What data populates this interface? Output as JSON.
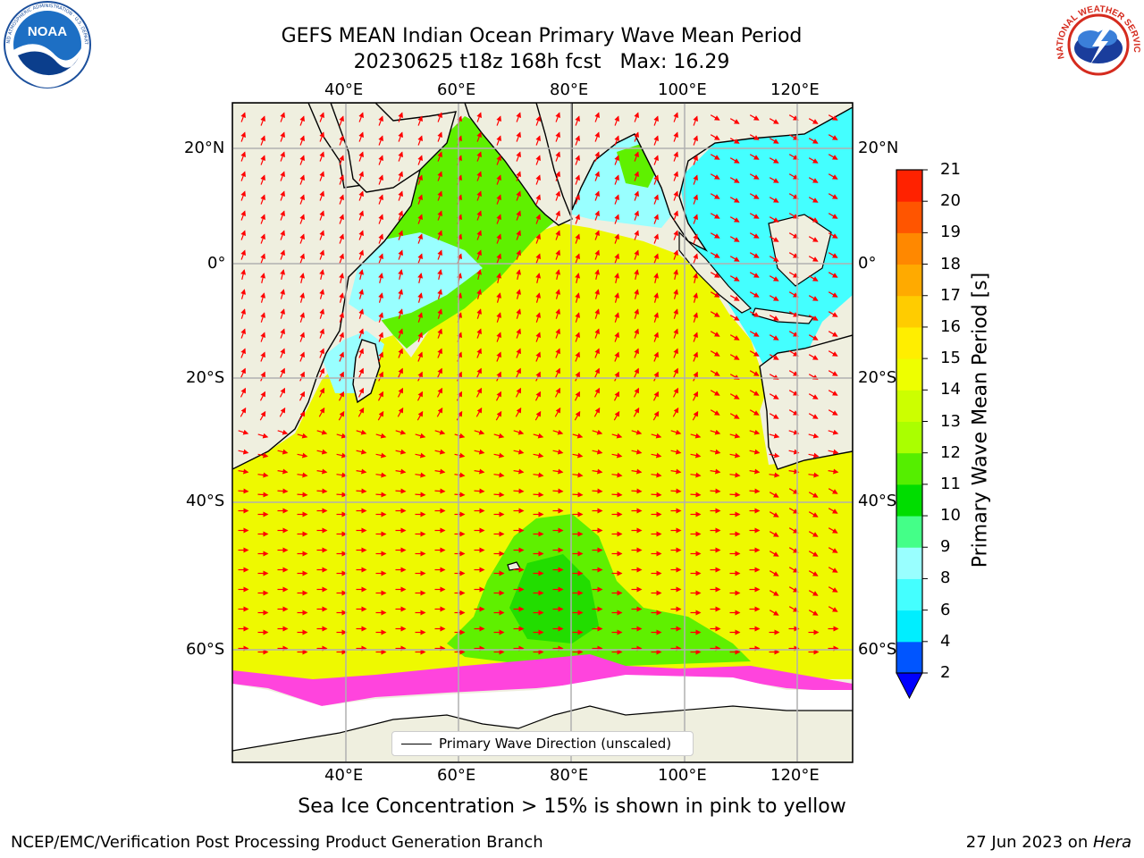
{
  "title": {
    "line1": "GEFS MEAN Indian Ocean Primary Wave Mean Period",
    "line2": "20230625 t18z 168h fcst   Max: 16.29"
  },
  "logos": {
    "noaa_text": "NOAA",
    "noaa_ring": "NATIONAL OCEANIC AND ATMOSPHERIC ADMINISTRATION · U.S. DEPARTMENT OF COMMERCE",
    "nws_ring": "NATIONAL WEATHER SERVICE"
  },
  "map": {
    "lon_labels": [
      "40°E",
      "60°E",
      "80°E",
      "100°E",
      "120°E"
    ],
    "lat_labels": [
      "20°N",
      "0°",
      "20°S",
      "40°S",
      "60°S"
    ],
    "colors": {
      "land": "#efefdf",
      "ice_free_land": "#ffffff",
      "arrow": "#ff0000"
    }
  },
  "legend": {
    "label": "Primary Wave Direction (unscaled)"
  },
  "colorbar": {
    "label": "Primary Wave Mean Period [s]",
    "ticks": [
      "2",
      "4",
      "6",
      "8",
      "9",
      "10",
      "11",
      "12",
      "13",
      "14",
      "15",
      "16",
      "17",
      "18",
      "19",
      "20",
      "21"
    ],
    "colors": [
      "#0055ff",
      "#00eeff",
      "#44ffff",
      "#99ffff",
      "#44ff88",
      "#00dd00",
      "#55ee00",
      "#aaff00",
      "#ccff00",
      "#eeff00",
      "#ffee00",
      "#ffcc00",
      "#ffaa00",
      "#ff8800",
      "#ff5500",
      "#ff2200"
    ],
    "extend_color": "#0000ff"
  },
  "caption": "Sea Ice Concentration > 15% is shown in pink to yellow",
  "footer": {
    "left": "NCEP/EMC/Verification Post Processing Product Generation Branch",
    "right_prefix": "27 Jun 2023 on ",
    "right_host": "Hera"
  }
}
